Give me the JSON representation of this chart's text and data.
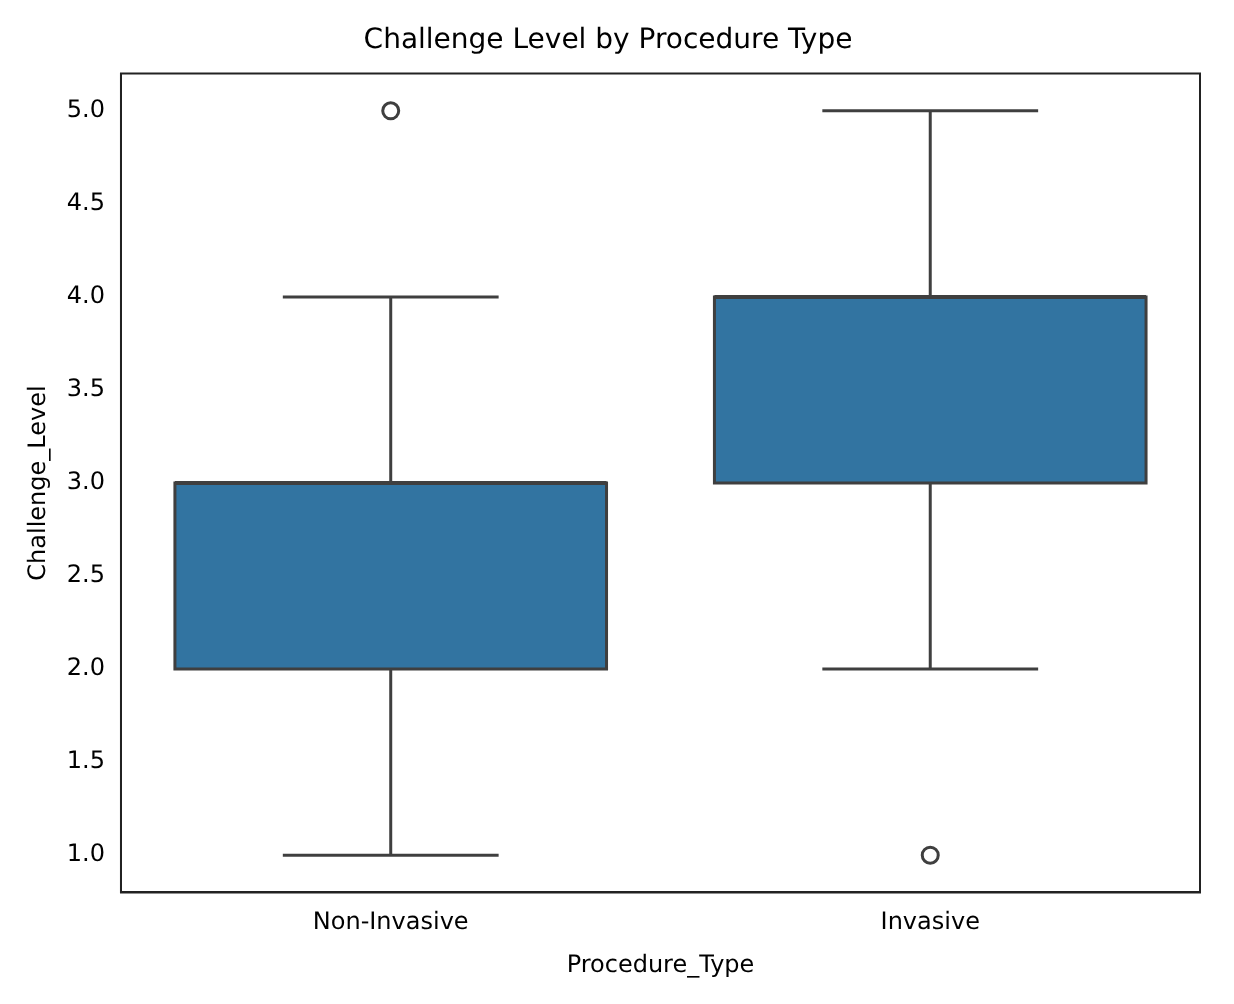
{
  "chart_data": {
    "type": "box",
    "title": "Challenge Level by Procedure Type",
    "xlabel": "Procedure_Type",
    "ylabel": "Challenge_Level",
    "categories": [
      "Non-Invasive",
      "Invasive"
    ],
    "color": "#3274a1",
    "boxes": [
      {
        "low": 1,
        "q1": 2,
        "median": 3,
        "q3": 3,
        "high": 4,
        "outliers": [
          5
        ]
      },
      {
        "low": 2,
        "q1": 3,
        "median": 4,
        "q3": 4,
        "high": 5,
        "outliers": [
          1
        ]
      }
    ],
    "ylim": [
      0.8,
      5.2
    ],
    "yticks": [
      {
        "value": 1,
        "label": "1.0"
      },
      {
        "value": 1.5,
        "label": "1.5"
      },
      {
        "value": 2,
        "label": "2.0"
      },
      {
        "value": 2.5,
        "label": "2.5"
      },
      {
        "value": 3,
        "label": "3.0"
      },
      {
        "value": 3.5,
        "label": "3.5"
      },
      {
        "value": 4,
        "label": "4.0"
      },
      {
        "value": 4.5,
        "label": "4.5"
      },
      {
        "value": 5,
        "label": "5.0"
      }
    ],
    "grid": false,
    "legend": false
  }
}
